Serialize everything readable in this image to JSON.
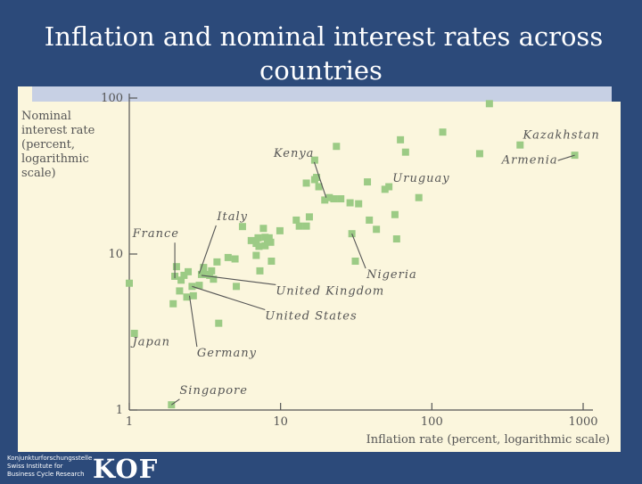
{
  "slide": {
    "title_line1": "Inflation and nominal interest rates across",
    "title_line2": "countries"
  },
  "footer": {
    "org_line1": "Konjunkturforschungsstelle",
    "org_line2": "Swiss Institute for",
    "org_line3": "Business Cycle Research",
    "logo": "KOF"
  },
  "colors": {
    "background": "#2c4a7a",
    "panel": "#fbf6dd",
    "point": "#9ccb85",
    "axis": "#555555",
    "text": "#555555"
  },
  "chart_data": {
    "type": "scatter",
    "x_scale": "log",
    "y_scale": "log",
    "xlim": [
      1,
      1000
    ],
    "ylim": [
      1,
      100
    ],
    "xlabel": "Inflation rate (percent, logarithmic scale)",
    "ylabel_lines": [
      "Nominal",
      "interest rate",
      "(percent,",
      "logarithmic",
      "scale)"
    ],
    "x_ticks": [
      {
        "value": 1,
        "label": "1"
      },
      {
        "value": 10,
        "label": "10"
      },
      {
        "value": 100,
        "label": "100"
      },
      {
        "value": 1000,
        "label": "1000"
      }
    ],
    "y_ticks": [
      {
        "value": 1,
        "label": "1"
      },
      {
        "value": 10,
        "label": "10"
      },
      {
        "value": 100,
        "label": "100"
      }
    ],
    "points": [
      {
        "x": 1.0,
        "y": 6.5
      },
      {
        "x": 1.08,
        "y": 3.1
      },
      {
        "x": 1.9,
        "y": 1.08
      },
      {
        "x": 1.95,
        "y": 4.8
      },
      {
        "x": 2.0,
        "y": 7.2
      },
      {
        "x": 2.05,
        "y": 8.3
      },
      {
        "x": 2.15,
        "y": 5.8
      },
      {
        "x": 2.2,
        "y": 6.8
      },
      {
        "x": 2.3,
        "y": 7.3
      },
      {
        "x": 2.4,
        "y": 5.3
      },
      {
        "x": 2.45,
        "y": 7.7
      },
      {
        "x": 2.6,
        "y": 6.2
      },
      {
        "x": 2.65,
        "y": 5.4
      },
      {
        "x": 2.9,
        "y": 6.3
      },
      {
        "x": 3.0,
        "y": 7.4
      },
      {
        "x": 3.1,
        "y": 8.2
      },
      {
        "x": 3.2,
        "y": 7.4
      },
      {
        "x": 3.4,
        "y": 7.3
      },
      {
        "x": 3.5,
        "y": 7.8
      },
      {
        "x": 3.6,
        "y": 6.9
      },
      {
        "x": 3.8,
        "y": 8.9
      },
      {
        "x": 3.9,
        "y": 3.6
      },
      {
        "x": 4.5,
        "y": 9.5
      },
      {
        "x": 5.0,
        "y": 9.3
      },
      {
        "x": 5.1,
        "y": 6.2
      },
      {
        "x": 5.6,
        "y": 15.0
      },
      {
        "x": 6.4,
        "y": 12.2
      },
      {
        "x": 6.9,
        "y": 9.8
      },
      {
        "x": 6.9,
        "y": 11.7
      },
      {
        "x": 7.1,
        "y": 12.7
      },
      {
        "x": 7.2,
        "y": 11.2
      },
      {
        "x": 7.3,
        "y": 7.8
      },
      {
        "x": 7.7,
        "y": 14.6
      },
      {
        "x": 7.9,
        "y": 11.3
      },
      {
        "x": 7.9,
        "y": 12.8
      },
      {
        "x": 8.2,
        "y": 12.0
      },
      {
        "x": 8.4,
        "y": 12.7
      },
      {
        "x": 8.6,
        "y": 11.9
      },
      {
        "x": 8.7,
        "y": 9.0
      },
      {
        "x": 9.9,
        "y": 14.1
      },
      {
        "x": 12.7,
        "y": 16.5
      },
      {
        "x": 13.3,
        "y": 15.1
      },
      {
        "x": 14.8,
        "y": 15.1
      },
      {
        "x": 14.8,
        "y": 28.5
      },
      {
        "x": 15.5,
        "y": 17.3
      },
      {
        "x": 16.8,
        "y": 30.0
      },
      {
        "x": 16.8,
        "y": 40.0
      },
      {
        "x": 17.3,
        "y": 31.0
      },
      {
        "x": 17.9,
        "y": 27.0
      },
      {
        "x": 19.6,
        "y": 22.2
      },
      {
        "x": 21.0,
        "y": 23.0
      },
      {
        "x": 22.5,
        "y": 22.6
      },
      {
        "x": 23.4,
        "y": 49.0
      },
      {
        "x": 25.0,
        "y": 22.6
      },
      {
        "x": 28.8,
        "y": 21.3
      },
      {
        "x": 29.6,
        "y": 13.5
      },
      {
        "x": 31.2,
        "y": 9.0
      },
      {
        "x": 32.8,
        "y": 21.0
      },
      {
        "x": 37.5,
        "y": 29.0
      },
      {
        "x": 38.6,
        "y": 16.5
      },
      {
        "x": 43.0,
        "y": 14.4
      },
      {
        "x": 49.0,
        "y": 26.0
      },
      {
        "x": 52.0,
        "y": 27.0
      },
      {
        "x": 57.0,
        "y": 17.9
      },
      {
        "x": 58.5,
        "y": 12.5
      },
      {
        "x": 62.0,
        "y": 54.0
      },
      {
        "x": 67.0,
        "y": 45.0
      },
      {
        "x": 82.0,
        "y": 23.0
      },
      {
        "x": 118.0,
        "y": 60.5
      },
      {
        "x": 207.0,
        "y": 44.0
      },
      {
        "x": 240.0,
        "y": 92.0
      },
      {
        "x": 383.0,
        "y": 50.0
      },
      {
        "x": 880.0,
        "y": 43.0
      }
    ],
    "annotations": [
      {
        "label": "Kazakhstan",
        "x": 400,
        "y": 55,
        "tx": 400,
        "ty": 55
      },
      {
        "label": "Armenia",
        "x": 880,
        "y": 43,
        "tx": 290,
        "ty": 38
      },
      {
        "label": "Kenya",
        "x": 20,
        "y": 23,
        "tx": 9,
        "ty": 42
      },
      {
        "label": "Uruguay",
        "x": 55,
        "y": 28,
        "tx": 55,
        "ty": 29
      },
      {
        "label": "Italy",
        "x": 2.9,
        "y": 7.5,
        "tx": 3.8,
        "ty": 16.5
      },
      {
        "label": "France",
        "x": 2.0,
        "y": 7.0,
        "tx": 1.05,
        "ty": 12.8
      },
      {
        "label": "Nigeria",
        "x": 29.6,
        "y": 13.5,
        "tx": 37,
        "ty": 7.0
      },
      {
        "label": "United Kingdom",
        "x": 3.0,
        "y": 7.3,
        "tx": 9.3,
        "ty": 5.5
      },
      {
        "label": "United States",
        "x": 2.6,
        "y": 6.2,
        "tx": 7.9,
        "ty": 3.8
      },
      {
        "label": "Japan",
        "x": 1.05,
        "y": 3.1,
        "tx": 1.05,
        "ty": 2.6
      },
      {
        "label": "Germany",
        "x": 2.5,
        "y": 5.4,
        "tx": 2.8,
        "ty": 2.2
      },
      {
        "label": "Singapore",
        "x": 1.9,
        "y": 1.08,
        "tx": 2.15,
        "ty": 1.27
      }
    ]
  }
}
